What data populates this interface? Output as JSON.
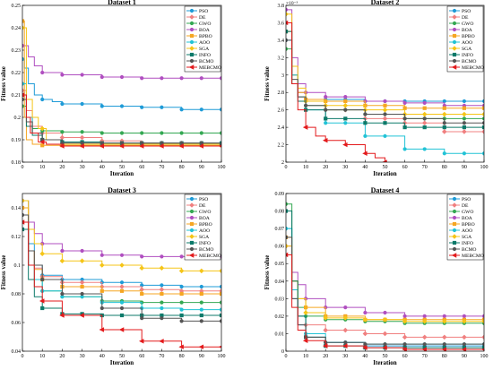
{
  "legend_labels": [
    "PSO",
    "DE",
    "GWO",
    "BOA",
    "BPBO",
    "AOO",
    "SGA",
    "INFO",
    "BCMO",
    "MEBCMO"
  ],
  "series_colors": [
    "#1f9bd7",
    "#f08080",
    "#34a853",
    "#b04fc0",
    "#f5a623",
    "#22c3d6",
    "#f5c518",
    "#0c7a6a",
    "#555555",
    "#e31a1c"
  ],
  "chart_data": [
    {
      "type": "line",
      "title": "Dataset 1",
      "xlabel": "Iteration",
      "ylabel": "Fitness value",
      "xlim": [
        0,
        100
      ],
      "ylim": [
        0.18,
        0.25
      ],
      "x_ticks": [
        "0",
        "10",
        "20",
        "30",
        "40",
        "50",
        "60",
        "70",
        "80",
        "90",
        "100"
      ],
      "y_ticks": [
        "0.18",
        "0.19",
        "0.2",
        "0.21",
        "0.22",
        "0.23",
        "0.24",
        "0.25"
      ],
      "y_multiplier": "",
      "legend": "top-right",
      "series": [
        {
          "name": "PSO",
          "x": [
            0,
            1,
            3,
            6,
            10,
            15,
            20,
            40,
            60,
            80,
            100
          ],
          "y": [
            0.226,
            0.222,
            0.215,
            0.21,
            0.208,
            0.207,
            0.206,
            0.205,
            0.2045,
            0.2035,
            0.2035
          ]
        },
        {
          "name": "DE",
          "x": [
            0,
            2,
            5,
            10,
            20,
            40,
            60,
            100
          ],
          "y": [
            0.212,
            0.203,
            0.196,
            0.193,
            0.191,
            0.1895,
            0.1885,
            0.188
          ]
        },
        {
          "name": "GWO",
          "x": [
            0,
            2,
            5,
            10,
            20,
            40,
            100
          ],
          "y": [
            0.205,
            0.198,
            0.195,
            0.194,
            0.1935,
            0.193,
            0.193
          ]
        },
        {
          "name": "BOA",
          "x": [
            0,
            3,
            6,
            10,
            20,
            40,
            60,
            80,
            100
          ],
          "y": [
            0.232,
            0.227,
            0.223,
            0.22,
            0.219,
            0.218,
            0.2175,
            0.2175,
            0.2175
          ]
        },
        {
          "name": "BPBO",
          "x": [
            0,
            1,
            2,
            5,
            10,
            100
          ],
          "y": [
            0.243,
            0.2,
            0.19,
            0.188,
            0.1875,
            0.1875
          ]
        },
        {
          "name": "AOO",
          "x": [
            0,
            2,
            5,
            10,
            20,
            40,
            100
          ],
          "y": [
            0.215,
            0.2,
            0.193,
            0.19,
            0.189,
            0.188,
            0.188
          ]
        },
        {
          "name": "SGA",
          "x": [
            0,
            2,
            5,
            8,
            12,
            20,
            100
          ],
          "y": [
            0.24,
            0.208,
            0.2,
            0.195,
            0.19,
            0.188,
            0.188
          ]
        },
        {
          "name": "INFO",
          "x": [
            0,
            2,
            5,
            10,
            20,
            40,
            100
          ],
          "y": [
            0.21,
            0.196,
            0.192,
            0.19,
            0.189,
            0.1885,
            0.1885
          ]
        },
        {
          "name": "BCMO",
          "x": [
            0,
            2,
            5,
            10,
            20,
            100
          ],
          "y": [
            0.208,
            0.198,
            0.193,
            0.19,
            0.1885,
            0.1875
          ]
        },
        {
          "name": "MEBCMO",
          "x": [
            0,
            2,
            4,
            8,
            12,
            20,
            100
          ],
          "y": [
            0.21,
            0.2,
            0.193,
            0.189,
            0.188,
            0.1872,
            0.1872
          ]
        }
      ]
    },
    {
      "type": "line",
      "title": "Dataset 2",
      "xlabel": "Iteration",
      "ylabel": "Fitness value",
      "xlim": [
        0,
        100
      ],
      "ylim": [
        2,
        3.8
      ],
      "x_ticks": [
        "0",
        "10",
        "20",
        "30",
        "40",
        "50",
        "60",
        "70",
        "80",
        "90",
        "100"
      ],
      "y_ticks": [
        "2",
        "2.2",
        "2.4",
        "2.6",
        "2.8",
        "3",
        "3.2",
        "3.4",
        "3.6",
        "3.8"
      ],
      "y_multiplier": "×10⁻³",
      "legend": "top-right",
      "series": [
        {
          "name": "PSO",
          "x": [
            0,
            3,
            6,
            10,
            20,
            40,
            60,
            80,
            100
          ],
          "y": [
            3.4,
            3.0,
            2.8,
            2.72,
            2.72,
            2.7,
            2.7,
            2.7,
            2.7
          ]
        },
        {
          "name": "DE",
          "x": [
            0,
            3,
            6,
            10,
            20,
            40,
            60,
            80,
            100
          ],
          "y": [
            3.5,
            3.0,
            2.8,
            2.7,
            2.6,
            2.5,
            2.45,
            2.35,
            2.35
          ]
        },
        {
          "name": "GWO",
          "x": [
            0,
            3,
            6,
            10,
            20,
            40,
            60,
            80,
            100
          ],
          "y": [
            3.3,
            2.9,
            2.75,
            2.65,
            2.6,
            2.55,
            2.5,
            2.5,
            2.5
          ]
        },
        {
          "name": "BOA",
          "x": [
            0,
            3,
            6,
            10,
            20,
            40,
            60,
            80,
            100
          ],
          "y": [
            3.75,
            3.2,
            2.9,
            2.8,
            2.75,
            2.7,
            2.68,
            2.65,
            2.65
          ]
        },
        {
          "name": "BPBO",
          "x": [
            0,
            3,
            6,
            10,
            20,
            40,
            60,
            80,
            100
          ],
          "y": [
            3.5,
            3.0,
            2.8,
            2.72,
            2.7,
            2.65,
            2.62,
            2.62,
            2.62
          ]
        },
        {
          "name": "AOO",
          "x": [
            0,
            3,
            6,
            10,
            20,
            40,
            60,
            80,
            100
          ],
          "y": [
            3.6,
            3.0,
            2.75,
            2.6,
            2.45,
            2.3,
            2.15,
            2.1,
            2.1
          ]
        },
        {
          "name": "SGA",
          "x": [
            0,
            3,
            6,
            10,
            20,
            40,
            60,
            80,
            100
          ],
          "y": [
            3.7,
            3.1,
            2.85,
            2.7,
            2.65,
            2.6,
            2.55,
            2.55,
            2.55
          ]
        },
        {
          "name": "INFO",
          "x": [
            0,
            3,
            6,
            10,
            20,
            40,
            60,
            80,
            100
          ],
          "y": [
            3.5,
            2.9,
            2.7,
            2.6,
            2.5,
            2.45,
            2.4,
            2.4,
            2.4
          ]
        },
        {
          "name": "BCMO",
          "x": [
            0,
            3,
            6,
            10,
            20,
            40,
            60,
            80,
            100
          ],
          "y": [
            3.4,
            2.95,
            2.75,
            2.65,
            2.6,
            2.55,
            2.5,
            2.45,
            2.45
          ]
        },
        {
          "name": "MEBCMO",
          "x": [
            0,
            3,
            6,
            10,
            15,
            20,
            30,
            40,
            45,
            50
          ],
          "y": [
            3.6,
            2.9,
            2.6,
            2.4,
            2.3,
            2.25,
            2.2,
            2.1,
            2.05,
            2.0
          ]
        }
      ]
    },
    {
      "type": "line",
      "title": "Dataset 3",
      "xlabel": "Iteration",
      "ylabel": "Fitness value",
      "xlim": [
        0,
        100
      ],
      "ylim": [
        0.04,
        0.15
      ],
      "x_ticks": [
        "0",
        "10",
        "20",
        "30",
        "40",
        "50",
        "60",
        "70",
        "80",
        "90",
        "100"
      ],
      "y_ticks": [
        "0.04",
        "0.06",
        "0.08",
        "0.1",
        "0.12",
        "0.14"
      ],
      "y_multiplier": "",
      "legend": "top-right",
      "series": [
        {
          "name": "PSO",
          "x": [
            0,
            3,
            6,
            10,
            20,
            40,
            60,
            80,
            100
          ],
          "y": [
            0.145,
            0.115,
            0.1,
            0.093,
            0.09,
            0.088,
            0.086,
            0.085,
            0.085
          ]
        },
        {
          "name": "DE",
          "x": [
            0,
            3,
            6,
            10,
            20,
            40,
            60,
            80,
            100
          ],
          "y": [
            0.14,
            0.11,
            0.098,
            0.092,
            0.088,
            0.085,
            0.083,
            0.082,
            0.082
          ]
        },
        {
          "name": "GWO",
          "x": [
            0,
            3,
            6,
            10,
            20,
            40,
            60,
            80,
            100
          ],
          "y": [
            0.13,
            0.1,
            0.09,
            0.082,
            0.078,
            0.075,
            0.074,
            0.074,
            0.074
          ]
        },
        {
          "name": "BOA",
          "x": [
            0,
            3,
            6,
            10,
            20,
            40,
            60,
            80,
            100
          ],
          "y": [
            0.145,
            0.13,
            0.122,
            0.115,
            0.11,
            0.107,
            0.106,
            0.106,
            0.106
          ]
        },
        {
          "name": "BPBO",
          "x": [
            0,
            3,
            6,
            10,
            20,
            40,
            60,
            80,
            100
          ],
          "y": [
            0.14,
            0.11,
            0.097,
            0.09,
            0.085,
            0.082,
            0.08,
            0.08,
            0.08
          ]
        },
        {
          "name": "AOO",
          "x": [
            0,
            3,
            6,
            10,
            20,
            40,
            60,
            80,
            100
          ],
          "y": [
            0.13,
            0.1,
            0.09,
            0.082,
            0.078,
            0.074,
            0.07,
            0.069,
            0.069
          ]
        },
        {
          "name": "SGA",
          "x": [
            0,
            3,
            6,
            10,
            20,
            40,
            60,
            80,
            100
          ],
          "y": [
            0.145,
            0.125,
            0.115,
            0.108,
            0.103,
            0.1,
            0.098,
            0.096,
            0.096
          ]
        },
        {
          "name": "INFO",
          "x": [
            0,
            3,
            6,
            10,
            20,
            40,
            60,
            80,
            100
          ],
          "y": [
            0.125,
            0.09,
            0.078,
            0.07,
            0.066,
            0.065,
            0.065,
            0.065,
            0.065
          ]
        },
        {
          "name": "BCMO",
          "x": [
            0,
            3,
            6,
            10,
            20,
            40,
            60,
            80,
            100
          ],
          "y": [
            0.135,
            0.11,
            0.1,
            0.09,
            0.08,
            0.07,
            0.063,
            0.061,
            0.061
          ]
        },
        {
          "name": "MEBCMO",
          "x": [
            0,
            3,
            6,
            10,
            20,
            40,
            60,
            80,
            100
          ],
          "y": [
            0.13,
            0.1,
            0.085,
            0.075,
            0.065,
            0.055,
            0.047,
            0.043,
            0.043
          ]
        }
      ]
    },
    {
      "type": "line",
      "title": "Dataset 4",
      "xlabel": "Iteration",
      "ylabel": "Fitness value",
      "xlim": [
        0,
        100
      ],
      "ylim": [
        0,
        0.09
      ],
      "x_ticks": [
        "0",
        "10",
        "20",
        "30",
        "40",
        "50",
        "60",
        "70",
        "80",
        "90",
        "100"
      ],
      "y_ticks": [
        "0",
        "0.01",
        "0.02",
        "0.03",
        "0.04",
        "0.05",
        "0.06",
        "0.07",
        "0.08",
        "0.09"
      ],
      "y_multiplier": "",
      "legend": "top-right",
      "series": [
        {
          "name": "PSO",
          "x": [
            0,
            3,
            6,
            10,
            20,
            40,
            60,
            80,
            100
          ],
          "y": [
            0.07,
            0.03,
            0.015,
            0.008,
            0.005,
            0.003,
            0.003,
            0.003,
            0.003
          ]
        },
        {
          "name": "DE",
          "x": [
            0,
            3,
            6,
            10,
            20,
            40,
            60,
            80,
            100
          ],
          "y": [
            0.06,
            0.035,
            0.02,
            0.015,
            0.012,
            0.01,
            0.008,
            0.008,
            0.008
          ]
        },
        {
          "name": "GWO",
          "x": [
            0,
            3,
            6,
            10,
            20,
            40,
            60,
            80,
            100
          ],
          "y": [
            0.084,
            0.04,
            0.025,
            0.02,
            0.018,
            0.017,
            0.016,
            0.016,
            0.016
          ]
        },
        {
          "name": "BOA",
          "x": [
            0,
            3,
            6,
            10,
            20,
            40,
            60,
            80,
            100
          ],
          "y": [
            0.06,
            0.045,
            0.038,
            0.03,
            0.025,
            0.022,
            0.02,
            0.02,
            0.02
          ]
        },
        {
          "name": "BPBO",
          "x": [
            0,
            3,
            6,
            10,
            20,
            40,
            60,
            80,
            100
          ],
          "y": [
            0.065,
            0.04,
            0.03,
            0.025,
            0.02,
            0.018,
            0.018,
            0.018,
            0.018
          ]
        },
        {
          "name": "AOO",
          "x": [
            0,
            3,
            6,
            10,
            20,
            40,
            60,
            80,
            100
          ],
          "y": [
            0.07,
            0.035,
            0.02,
            0.01,
            0.005,
            0.004,
            0.004,
            0.004,
            0.004
          ]
        },
        {
          "name": "SGA",
          "x": [
            0,
            3,
            6,
            10,
            20,
            40,
            60,
            80,
            100
          ],
          "y": [
            0.06,
            0.04,
            0.03,
            0.022,
            0.019,
            0.018,
            0.017,
            0.017,
            0.017
          ]
        },
        {
          "name": "INFO",
          "x": [
            0,
            3,
            6,
            10,
            20,
            40,
            60,
            80,
            100
          ],
          "y": [
            0.08,
            0.04,
            0.02,
            0.008,
            0.003,
            0.002,
            0.002,
            0.002,
            0.002
          ]
        },
        {
          "name": "BCMO",
          "x": [
            0,
            3,
            6,
            10,
            20,
            40,
            60,
            80,
            100
          ],
          "y": [
            0.065,
            0.03,
            0.015,
            0.008,
            0.005,
            0.004,
            0.004,
            0.004,
            0.004
          ]
        },
        {
          "name": "MEBCMO",
          "x": [
            0,
            3,
            6,
            10,
            20,
            40,
            60,
            80,
            100
          ],
          "y": [
            0.055,
            0.025,
            0.012,
            0.006,
            0.003,
            0.002,
            0.001,
            0.001,
            0.001
          ]
        }
      ]
    }
  ]
}
